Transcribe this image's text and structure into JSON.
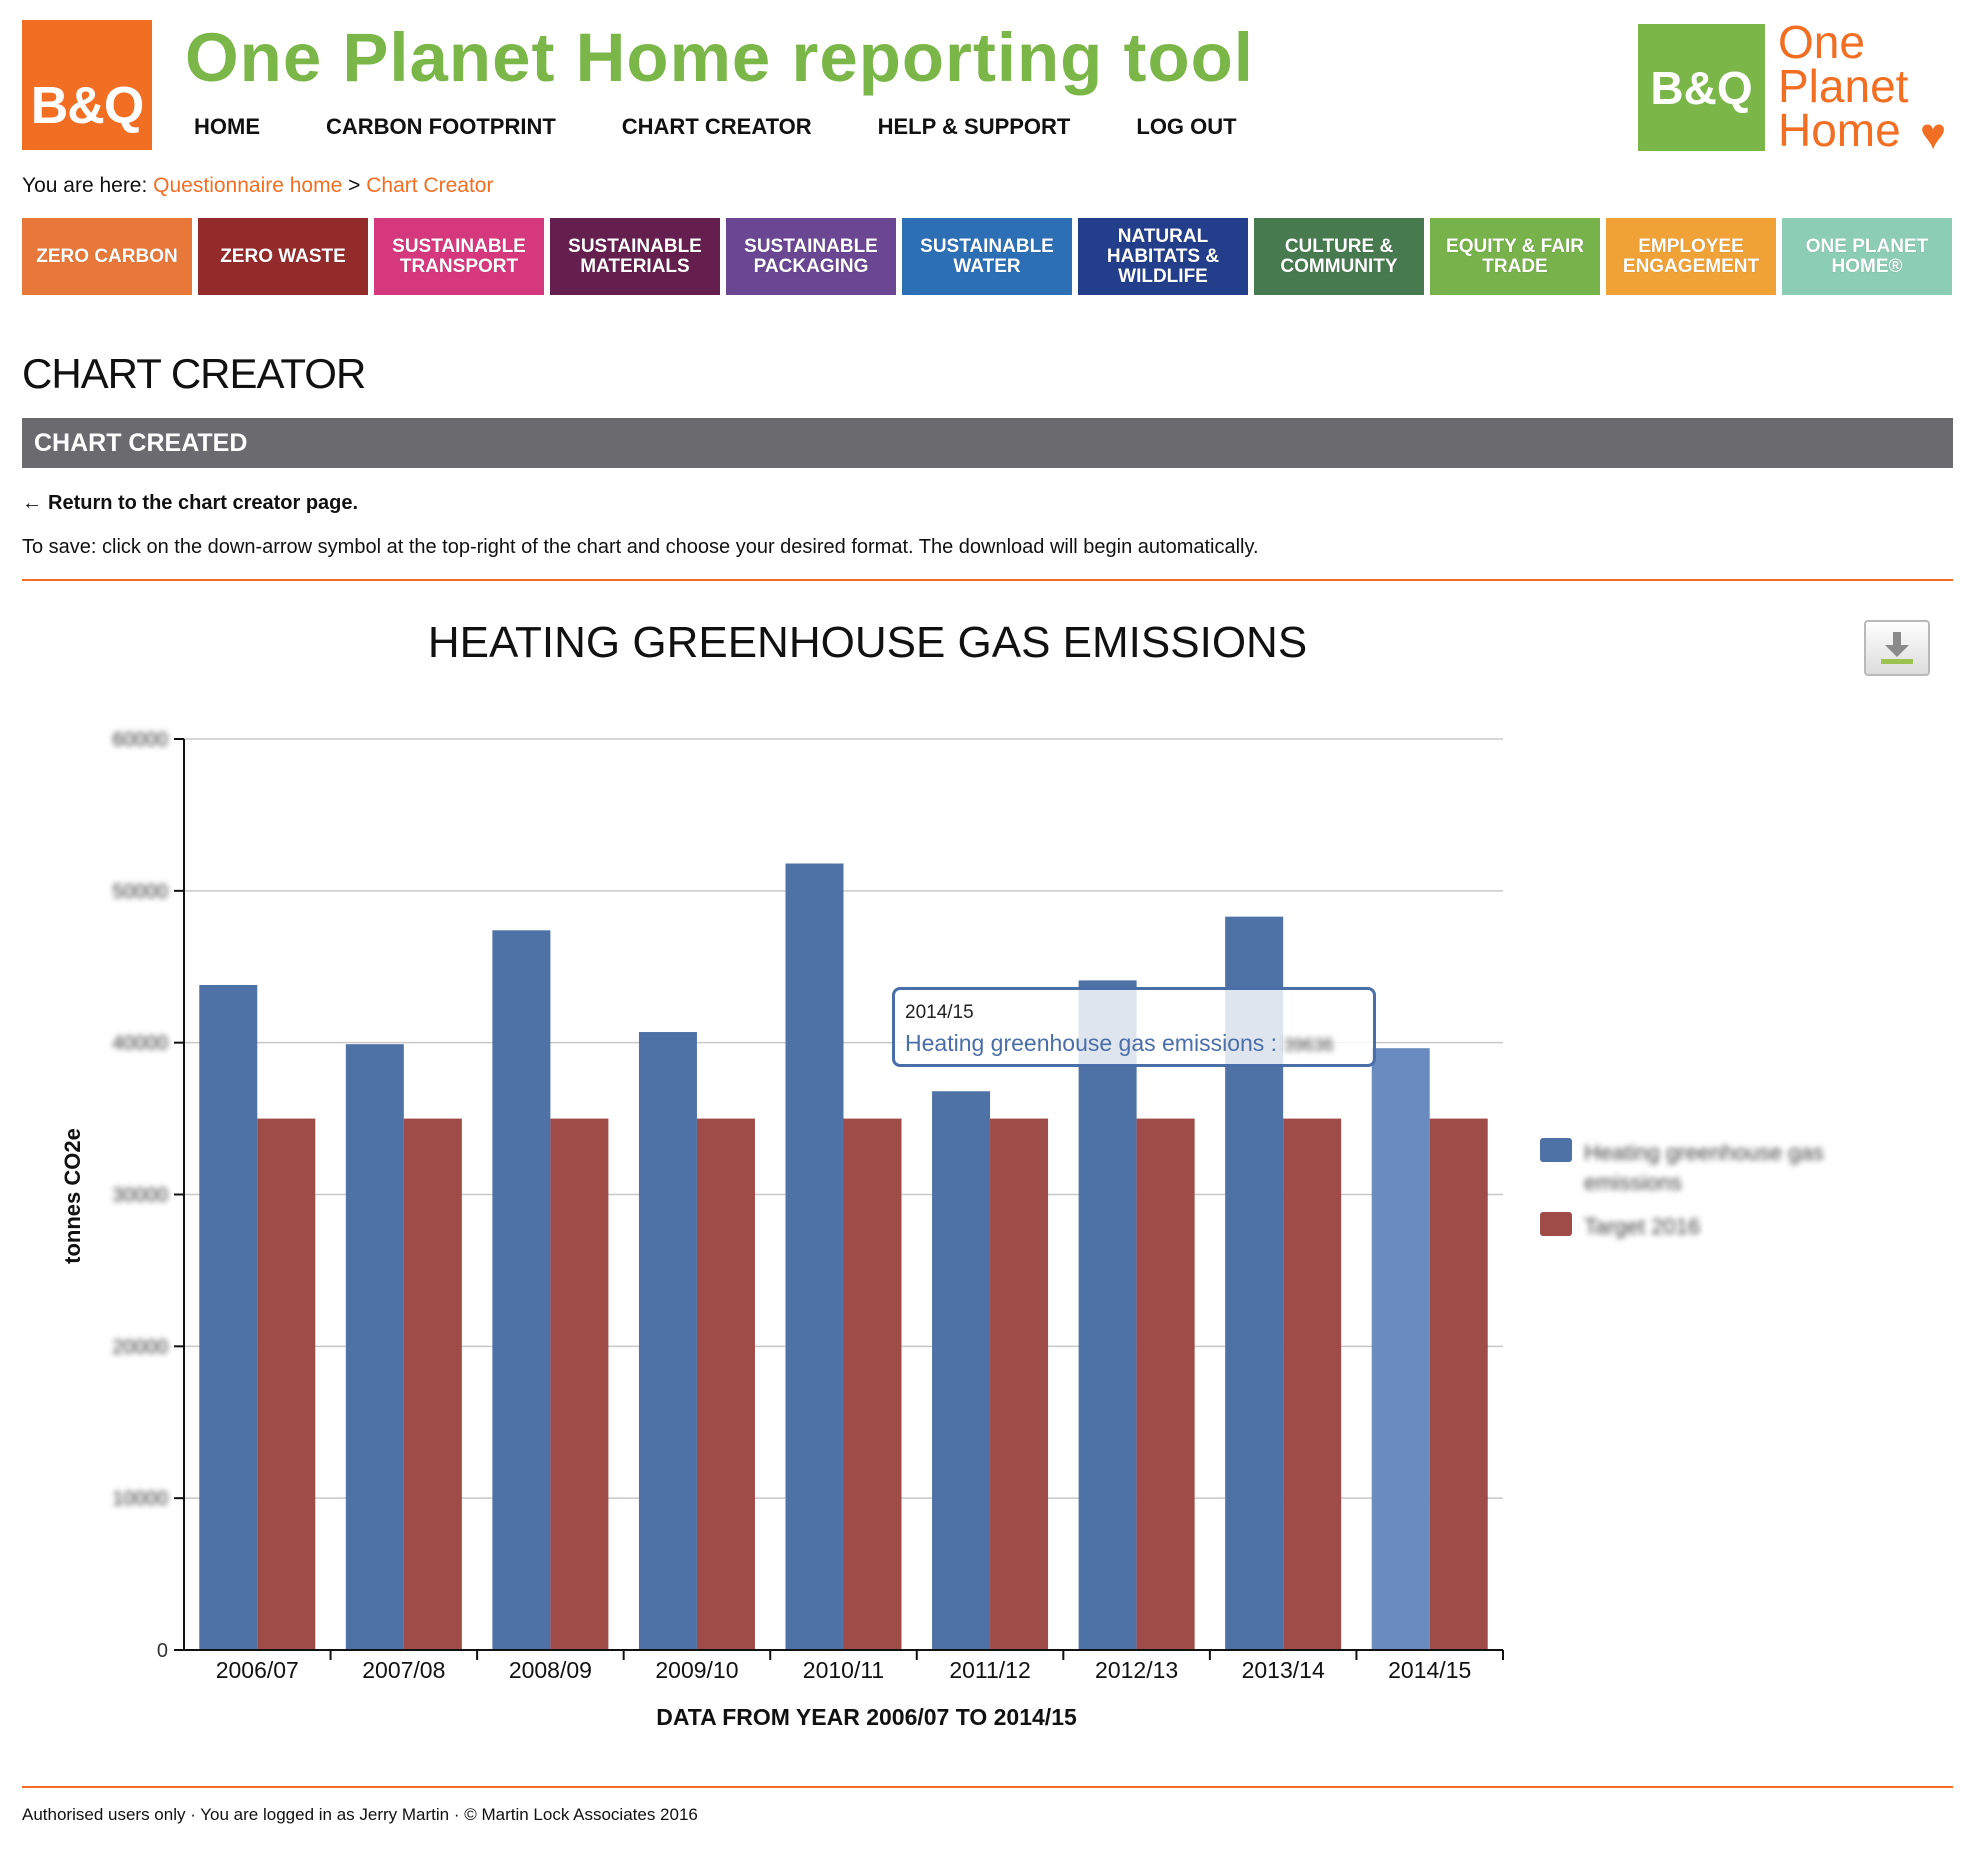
{
  "header": {
    "logo_text": "B&Q",
    "title": "One Planet Home reporting tool",
    "nav": [
      "HOME",
      "CARBON FOOTPRINT",
      "CHART CREATOR",
      "HELP & SUPPORT",
      "LOG OUT"
    ],
    "brand_right": {
      "box_text": "B&Q",
      "line1": "One",
      "line2": "Planet",
      "line3": "Home",
      "heart": "♥"
    }
  },
  "breadcrumb": {
    "prefix": "You are here:",
    "link1": "Questionnaire home",
    "separator": ">",
    "link2": "Chart Creator"
  },
  "categories": [
    {
      "label": "ZERO CARBON",
      "color": "#e8783a"
    },
    {
      "label": "ZERO WASTE",
      "color": "#942b2b"
    },
    {
      "label": "SUSTAINABLE TRANSPORT",
      "color": "#d6387d"
    },
    {
      "label": "SUSTAINABLE MATERIALS",
      "color": "#651f4e"
    },
    {
      "label": "SUSTAINABLE PACKAGING",
      "color": "#6a4693"
    },
    {
      "label": "SUSTAINABLE WATER",
      "color": "#2c6fb5"
    },
    {
      "label": "NATURAL HABITATS & WILDLIFE",
      "color": "#233f8c"
    },
    {
      "label": "CULTURE & COMMUNITY",
      "color": "#477a4f"
    },
    {
      "label": "EQUITY & FAIR TRADE",
      "color": "#77b24a"
    },
    {
      "label": "EMPLOYEE ENGAGEMENT",
      "color": "#f1a236"
    },
    {
      "label": "ONE PLANET HOME®",
      "color": "#8ccdb5"
    }
  ],
  "page": {
    "title": "CHART CREATOR",
    "section": "CHART CREATED",
    "return_link": "Return to the chart creator page.",
    "return_arrow": "←",
    "instructions": "To save: click on the down-arrow symbol at the top-right of the chart and choose your desired format. The download will begin automatically."
  },
  "tooltip": {
    "category": "2014/15",
    "series": "Heating greenhouse gas emissions",
    "separator": ":",
    "value": "39636"
  },
  "chart_data": {
    "type": "bar",
    "title": "HEATING GREENHOUSE GAS EMISSIONS",
    "xlabel": "DATA FROM YEAR 2006/07 TO 2014/15",
    "ylabel": "tonnes CO2e",
    "categories": [
      "2006/07",
      "2007/08",
      "2008/09",
      "2009/10",
      "2010/11",
      "2011/12",
      "2012/13",
      "2013/14",
      "2014/15"
    ],
    "yticks": [
      0,
      10000,
      20000,
      30000,
      40000,
      50000,
      60000
    ],
    "ylim": [
      0,
      60000
    ],
    "grid": true,
    "legend": "right",
    "series": [
      {
        "name": "Heating greenhouse gas emissions",
        "color": "#4e72a6",
        "hover_color": "#6a8bc0",
        "values": [
          43800,
          39900,
          47400,
          40700,
          51800,
          36800,
          44100,
          48300,
          39636
        ]
      },
      {
        "name": "Target 2016",
        "color": "#9f4b48",
        "values": [
          35000,
          35000,
          35000,
          35000,
          35000,
          35000,
          35000,
          35000,
          35000
        ]
      }
    ]
  },
  "footer": {
    "text": "Authorised users only · You are logged in as Jerry Martin · © Martin Lock Associates 2016"
  }
}
